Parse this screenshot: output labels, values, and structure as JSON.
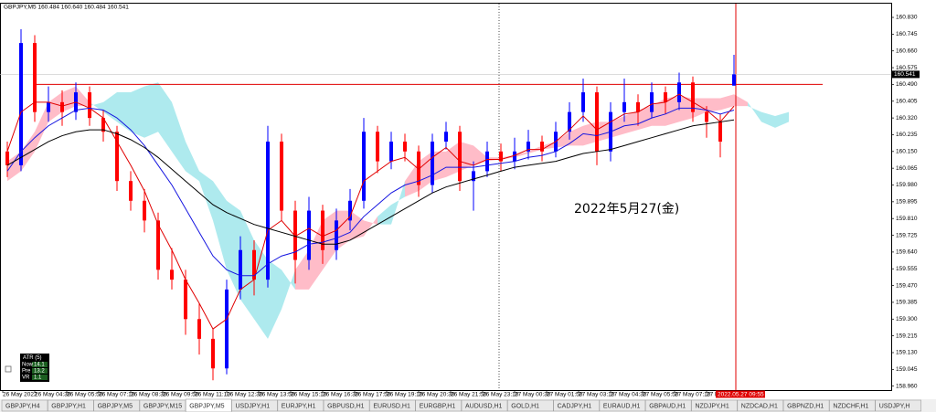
{
  "chart_data": {
    "type": "candlestick",
    "header": "GBPJPY,M5 160.484 160.640 160.484 160.541",
    "annotation": "2022年5月27(金)",
    "ylim": [
      158.94,
      160.895
    ],
    "yticks": [
      {
        "value": 160.83,
        "label": "160.830"
      },
      160.745,
      {
        "value": 160.66,
        "label": "160.660"
      },
      160.575,
      {
        "value": 160.49,
        "label": "160.490"
      },
      160.405,
      {
        "value": 160.32,
        "label": "160.320"
      },
      160.235,
      {
        "value": 160.15,
        "label": "160.150"
      },
      160.065,
      {
        "value": 159.98,
        "label": "159.980"
      },
      159.895,
      {
        "value": 159.81,
        "label": "159.810"
      },
      159.725,
      {
        "value": 159.64,
        "label": "159.640"
      },
      159.555,
      {
        "value": 159.47,
        "label": "159.470"
      },
      159.385,
      {
        "value": 159.3,
        "label": "159.300"
      },
      159.215,
      {
        "value": 159.13,
        "label": "159.130"
      },
      159.045,
      {
        "value": 158.96,
        "label": "158.960"
      }
    ],
    "x_labels": [
      "26 May 2022",
      "26 May 04:30",
      "26 May 05:50",
      "26 May 07:10",
      "26 May 08:30",
      "26 May 09:50",
      "26 May 11:10",
      "26 May 12:30",
      "26 May 13:50",
      "26 May 15:10",
      "26 May 16:30",
      "26 May 17:50",
      "26 May 19:10",
      "26 May 20:30",
      "26 May 21:50",
      "26 May 23:10",
      "27 May 00:30",
      "27 May 01:50",
      "27 May 03:10",
      "27 May 04:30",
      "27 May 05:50",
      "27 May 07:10",
      "27 May 08:30"
    ],
    "current_price": 160.541,
    "cursor_time": "2022.05.27 09:55",
    "up_color": "#0000ff",
    "down_color": "#ff0000",
    "candles": [
      [
        160.15,
        160.2,
        160.02,
        160.08
      ],
      [
        160.08,
        160.77,
        160.05,
        160.7
      ],
      [
        160.7,
        160.74,
        160.3,
        160.35
      ],
      [
        160.35,
        160.48,
        160.3,
        160.4
      ],
      [
        160.4,
        160.46,
        160.28,
        160.35
      ],
      [
        160.35,
        160.5,
        160.31,
        160.45
      ],
      [
        160.45,
        160.48,
        160.28,
        160.32
      ],
      [
        160.32,
        160.36,
        160.2,
        160.25
      ],
      [
        160.25,
        160.28,
        159.95,
        160.0
      ],
      [
        160.0,
        160.05,
        159.85,
        159.9
      ],
      [
        159.9,
        159.96,
        159.74,
        159.8
      ],
      [
        159.8,
        159.84,
        159.5,
        159.55
      ],
      [
        159.55,
        159.66,
        159.45,
        159.5
      ],
      [
        159.5,
        159.55,
        159.22,
        159.3
      ],
      [
        159.3,
        159.38,
        159.12,
        159.2
      ],
      [
        159.2,
        159.25,
        158.99,
        159.05
      ],
      [
        159.05,
        159.5,
        159.02,
        159.45
      ],
      [
        159.45,
        159.72,
        159.4,
        159.65
      ],
      [
        159.65,
        159.7,
        159.42,
        159.5
      ],
      [
        159.5,
        160.28,
        159.46,
        160.2
      ],
      [
        160.2,
        160.24,
        159.8,
        159.85
      ],
      [
        159.85,
        159.9,
        159.48,
        159.6
      ],
      [
        159.6,
        159.92,
        159.55,
        159.85
      ],
      [
        159.85,
        159.88,
        159.58,
        159.65
      ],
      [
        159.65,
        159.86,
        159.6,
        159.8
      ],
      [
        159.8,
        159.96,
        159.75,
        159.9
      ],
      [
        159.9,
        160.32,
        159.86,
        160.25
      ],
      [
        160.25,
        160.28,
        160.04,
        160.1
      ],
      [
        160.1,
        160.25,
        160.06,
        160.2
      ],
      [
        160.2,
        160.24,
        160.1,
        160.15
      ],
      [
        160.15,
        160.18,
        159.92,
        159.98
      ],
      [
        159.98,
        160.24,
        159.94,
        160.2
      ],
      [
        160.2,
        160.3,
        160.16,
        160.25
      ],
      [
        160.25,
        160.28,
        159.95,
        160.0
      ],
      [
        160.0,
        160.1,
        159.85,
        160.05
      ],
      [
        160.05,
        160.2,
        160.02,
        160.15
      ],
      [
        160.15,
        160.19,
        160.05,
        160.1
      ],
      [
        160.1,
        160.22,
        160.06,
        160.15
      ],
      [
        160.15,
        160.26,
        160.11,
        160.2
      ],
      [
        160.2,
        160.23,
        160.1,
        160.15
      ],
      [
        160.15,
        160.3,
        160.12,
        160.25
      ],
      [
        160.25,
        160.4,
        160.21,
        160.35
      ],
      [
        160.35,
        160.52,
        160.3,
        160.45
      ],
      [
        160.45,
        160.48,
        160.08,
        160.15
      ],
      [
        160.15,
        160.4,
        160.1,
        160.35
      ],
      [
        160.35,
        160.52,
        160.3,
        160.4
      ],
      [
        160.4,
        160.44,
        160.28,
        160.35
      ],
      [
        160.35,
        160.5,
        160.32,
        160.45
      ],
      [
        160.45,
        160.48,
        160.34,
        160.4
      ],
      [
        160.4,
        160.55,
        160.36,
        160.5
      ],
      [
        160.5,
        160.53,
        160.3,
        160.35
      ],
      [
        160.35,
        160.38,
        160.22,
        160.3
      ],
      [
        160.3,
        160.34,
        160.12,
        160.2
      ],
      [
        160.484,
        160.64,
        160.484,
        160.541
      ]
    ],
    "lines": [
      {
        "color": "#e00000",
        "values": [
          160.15,
          160.35,
          160.4,
          160.4,
          160.38,
          160.4,
          160.37,
          160.32,
          160.2,
          160.08,
          159.95,
          159.78,
          159.65,
          159.5,
          159.38,
          159.25,
          159.3,
          159.45,
          159.5,
          159.75,
          159.8,
          159.72,
          159.76,
          159.72,
          159.75,
          159.82,
          160.0,
          160.05,
          160.1,
          160.12,
          160.06,
          160.12,
          160.17,
          160.1,
          160.08,
          160.11,
          160.11,
          160.13,
          160.16,
          160.16,
          160.2,
          160.26,
          160.33,
          160.26,
          160.3,
          160.34,
          160.35,
          160.39,
          160.4,
          160.44,
          160.4,
          160.36,
          160.3,
          160.38
        ]
      },
      {
        "color": "#1515e0",
        "values": [
          160.05,
          160.15,
          160.22,
          160.28,
          160.32,
          160.36,
          160.37,
          160.36,
          160.32,
          160.26,
          160.18,
          160.08,
          159.98,
          159.86,
          159.74,
          159.62,
          159.55,
          159.52,
          159.52,
          159.58,
          159.62,
          159.64,
          159.68,
          159.69,
          159.71,
          159.74,
          159.82,
          159.88,
          159.94,
          159.98,
          160.0,
          160.03,
          160.07,
          160.07,
          160.07,
          160.08,
          160.09,
          160.1,
          160.12,
          160.13,
          160.15,
          160.19,
          160.24,
          160.23,
          160.25,
          160.28,
          160.29,
          160.32,
          160.34,
          160.37,
          160.37,
          160.36,
          160.34,
          160.36
        ]
      },
      {
        "color": "#000000",
        "values": [
          160.08,
          160.12,
          160.16,
          160.2,
          160.23,
          160.25,
          160.26,
          160.26,
          160.24,
          160.21,
          160.17,
          160.12,
          160.06,
          160.0,
          159.94,
          159.88,
          159.84,
          159.81,
          159.78,
          159.76,
          159.74,
          159.72,
          159.7,
          159.68,
          159.68,
          159.7,
          159.74,
          159.78,
          159.82,
          159.86,
          159.9,
          159.94,
          159.97,
          159.99,
          160.01,
          160.03,
          160.05,
          160.07,
          160.08,
          160.09,
          160.1,
          160.12,
          160.14,
          160.15,
          160.16,
          160.18,
          160.2,
          160.22,
          160.24,
          160.26,
          160.28,
          160.29,
          160.3,
          160.31
        ]
      }
    ],
    "cloud": {
      "up_color": "#ffbcc8",
      "down_color": "#aeeaee",
      "span_a": [
        160.1,
        160.15,
        160.25,
        160.4,
        160.45,
        160.48,
        160.4,
        160.35,
        160.3,
        160.25,
        160.22,
        160.25,
        160.15,
        160.05,
        160.0,
        159.8,
        159.55,
        159.4,
        159.3,
        159.2,
        159.35,
        159.55,
        159.65,
        159.8,
        159.85,
        159.85,
        159.8,
        159.78,
        159.78,
        160.0,
        160.1,
        160.15,
        160.15,
        160.2,
        160.18,
        160.12,
        160.12,
        160.13,
        160.15,
        160.18,
        160.2,
        160.25,
        160.28,
        160.3,
        160.3,
        160.33,
        160.36,
        160.38,
        160.42,
        160.43,
        160.42,
        160.42,
        160.42,
        160.44,
        160.4,
        160.3,
        160.27,
        160.3
      ],
      "span_b": [
        160.0,
        160.05,
        160.15,
        160.3,
        160.35,
        160.38,
        160.38,
        160.4,
        160.45,
        160.45,
        160.48,
        160.5,
        160.4,
        160.2,
        160.05,
        160.0,
        159.9,
        159.85,
        159.7,
        159.6,
        159.55,
        159.45,
        159.45,
        159.55,
        159.65,
        159.7,
        159.72,
        159.82,
        159.88,
        159.92,
        159.95,
        160.0,
        160.02,
        160.05,
        160.08,
        160.1,
        160.11,
        160.12,
        160.14,
        160.16,
        160.17,
        160.18,
        160.18,
        160.2,
        160.22,
        160.24,
        160.26,
        160.28,
        160.28,
        160.3,
        160.32,
        160.35,
        160.36,
        160.38,
        160.38,
        160.35,
        160.33,
        160.35
      ]
    },
    "hline": {
      "value": 160.49,
      "color": "#e00000"
    },
    "atr": {
      "title": "ATR (5)",
      "rows": [
        [
          "Now",
          14.1
        ],
        [
          "Pre",
          13.2
        ],
        [
          "VR",
          1.1
        ]
      ]
    }
  },
  "tabs": [
    "GBPJPY,H4",
    "GBPJPY,H1",
    "GBPJPY,M5",
    "GBPJPY,M15",
    "GBPJPY,M5",
    "USDJPY,H1",
    "EURJPY,H1",
    "GBPUSD,H1",
    "EURUSD,H1",
    "EURGBP,H1",
    "AUDUSD,H1",
    "GOLD,H1",
    "CADJPY,H1",
    "EURAUD,H1",
    "GBPAUD,H1",
    "NZDJPY,H1",
    "NZDCAD,H1",
    "GBPNZD,H1",
    "NZDCHF,H1",
    "USDJPY,H"
  ],
  "active_tab": 4
}
